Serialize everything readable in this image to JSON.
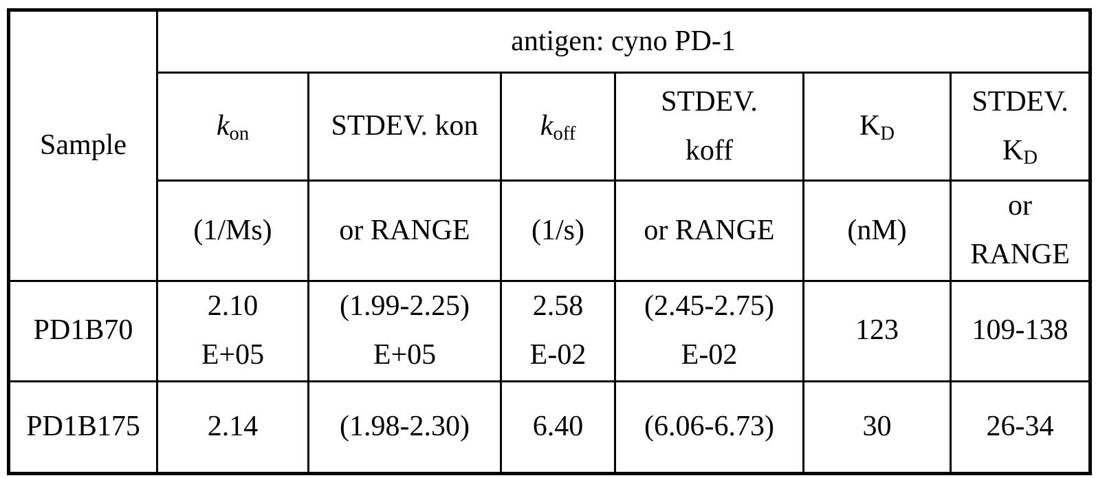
{
  "page": {
    "background_color": "#ffffff",
    "line_color": "#000000"
  },
  "table": {
    "antigen_header": "antigen: cyno PD-1",
    "sample_header": "Sample",
    "measure_headers": {
      "kon": {
        "base": "k",
        "sub": "on"
      },
      "stdev_kon": {
        "label": "STDEV. kon"
      },
      "koff": {
        "base": "k",
        "sub": "off"
      },
      "stdev_koff": {
        "line1": "STDEV.",
        "line2": "koff"
      },
      "kd": {
        "base": "K",
        "sub": "D"
      },
      "stdev_kd": {
        "line1": "STDEV.",
        "line2_base": "K",
        "line2_sub": "D"
      }
    },
    "unit_headers": {
      "kon": "(1/Ms)",
      "stdev_kon": "or RANGE",
      "koff": "(1/s)",
      "stdev_koff": "or RANGE",
      "kd": "(nM)",
      "stdev_kd_line1": "or",
      "stdev_kd_line2": "RANGE"
    },
    "rows": [
      {
        "sample": "PD1B70",
        "kon": [
          "2.10",
          "E+05"
        ],
        "stdev_kon": [
          "(1.99-2.25)",
          "E+05"
        ],
        "koff": [
          "2.58",
          "E-02"
        ],
        "stdev_koff": [
          "(2.45-2.75)",
          "E-02"
        ],
        "kd": [
          "123"
        ],
        "stdev_kd": [
          "109-138"
        ]
      },
      {
        "sample": "PD1B175",
        "kon": [
          "2.14"
        ],
        "stdev_kon": [
          "(1.98-2.30)"
        ],
        "koff": [
          "6.40"
        ],
        "stdev_koff": [
          "(6.06-6.73)"
        ],
        "kd": [
          "30"
        ],
        "stdev_kd": [
          "26-34"
        ]
      }
    ]
  },
  "chart_data": {
    "type": "table",
    "title": "antigen: cyno PD-1",
    "columns": [
      "Sample",
      "kon (1/Ms)",
      "STDEV. kon or RANGE",
      "koff (1/s)",
      "STDEV. koff or RANGE",
      "KD (nM)",
      "STDEV. KD or RANGE"
    ],
    "rows": [
      [
        "PD1B70",
        "2.10 E+05",
        "(1.99-2.25) E+05",
        "2.58 E-02",
        "(2.45-2.75) E-02",
        "123",
        "109-138"
      ],
      [
        "PD1B175",
        "2.14",
        "(1.98-2.30)",
        "6.40",
        "(6.06-6.73)",
        "30",
        "26-34"
      ]
    ]
  }
}
